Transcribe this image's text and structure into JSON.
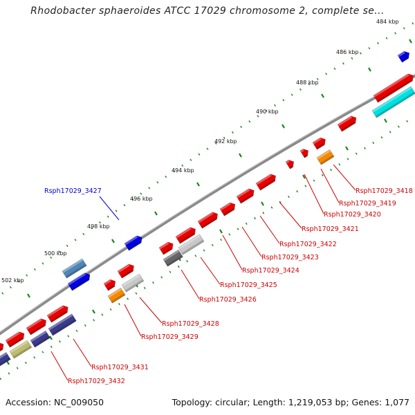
{
  "title": "Rhodobacter sphaeroides ATCC 17029 chromosome 2, complete se...",
  "footer": {
    "accession": "Accession: NC_009050",
    "summary": "Topology: circular; Length: 1,219,053 bp; Genes: 1,077"
  },
  "colors": {
    "backbone": "#808080",
    "tick": "#1a8a1a",
    "gene_red": "#e60000",
    "gene_blue": "#0000e0",
    "gene_steel": "#4f86b8",
    "gene_orange": "#f58a00",
    "gene_cyan": "#00e0e0",
    "gene_navy": "#3a3a8c",
    "gene_olive": "#bdbd70",
    "gene_gray": "#c8c8c8",
    "gene_darkgray": "#666666",
    "label_red": "#cc0000",
    "label_blue": "#0000cc"
  },
  "kbp_labels": [
    "484 kbp",
    "486 kbp",
    "488 kbp",
    "490 kbp",
    "492 kbp",
    "494 kbp",
    "496 kbp",
    "498 kbp",
    "500 kbp",
    "502 kbp"
  ],
  "gene_labels": [
    {
      "text": "Rsph17029_3418",
      "color": "red"
    },
    {
      "text": "Rsph17029_3419",
      "color": "red"
    },
    {
      "text": "Rsph17029_3420",
      "color": "red"
    },
    {
      "text": "Rsph17029_3421",
      "color": "red"
    },
    {
      "text": "Rsph17029_3422",
      "color": "red"
    },
    {
      "text": "Rsph17029_3423",
      "color": "red"
    },
    {
      "text": "Rsph17029_3424",
      "color": "red"
    },
    {
      "text": "Rsph17029_3425",
      "color": "red"
    },
    {
      "text": "Rsph17029_3426",
      "color": "red"
    },
    {
      "text": "Rsph17029_3427",
      "color": "blue"
    },
    {
      "text": "Rsph17029_3428",
      "color": "red"
    },
    {
      "text": "Rsph17029_3429",
      "color": "red"
    },
    {
      "text": "Rsph17029_3431",
      "color": "red"
    },
    {
      "text": "Rsph17029_3432",
      "color": "red"
    }
  ]
}
